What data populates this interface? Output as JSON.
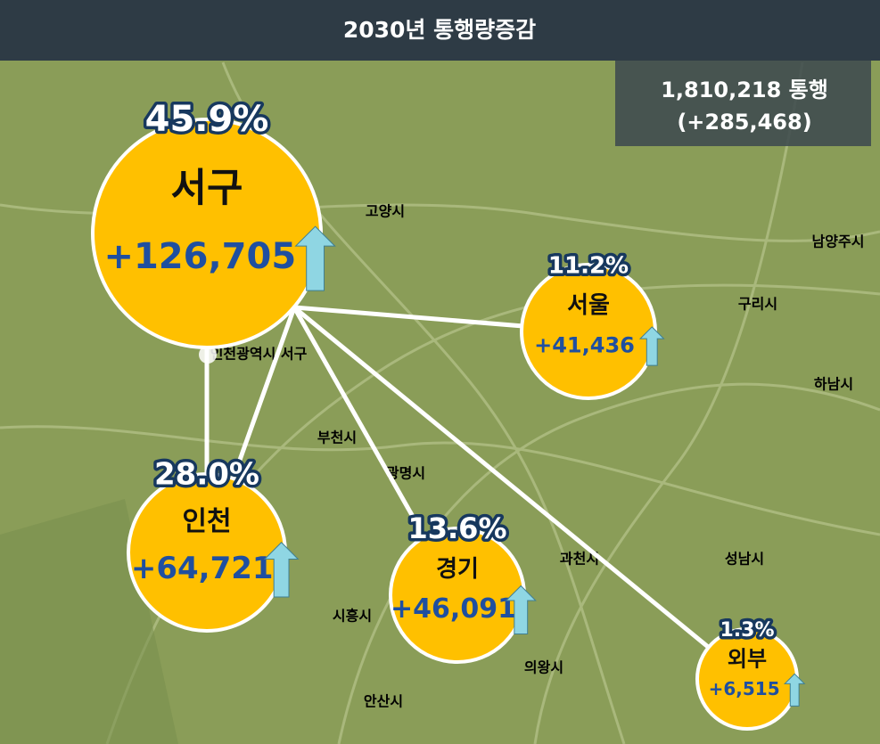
{
  "header": {
    "title": "2030년 통행량증감"
  },
  "summary": {
    "total": "1,810,218 통행",
    "change": "(+285,468)"
  },
  "regions": [
    {
      "name": "서구",
      "share": "45.9%",
      "change": "+126,705"
    },
    {
      "name": "서울",
      "share": "11.2%",
      "change": "+41,436"
    },
    {
      "name": "인천",
      "share": "28.0%",
      "change": "+64,721"
    },
    {
      "name": "경기",
      "share": "13.6%",
      "change": "+46,091"
    },
    {
      "name": "외부",
      "share": "1.3%",
      "change": "+6,515"
    }
  ],
  "map_labels": [
    "인천광역시 서구",
    "고양시",
    "부천시",
    "구리시",
    "남양주시",
    "하남시",
    "광명시",
    "과천시",
    "시흥시",
    "의왕시",
    "안산시",
    "성남시"
  ]
}
